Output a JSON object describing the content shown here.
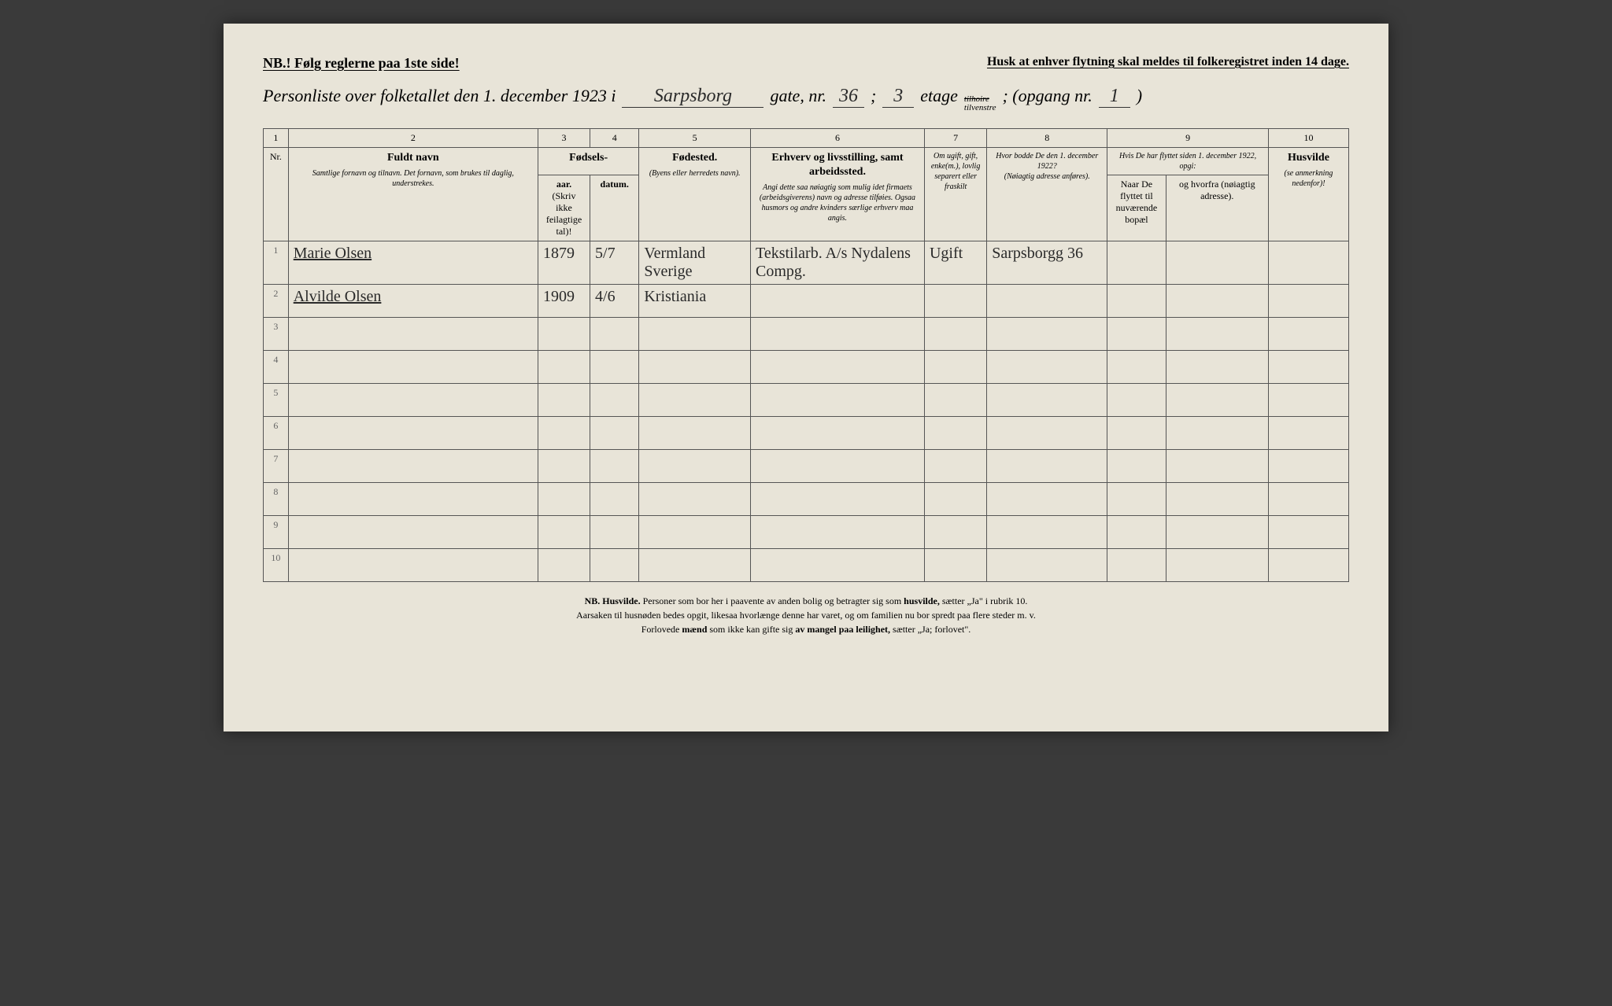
{
  "header": {
    "nb": "NB.! Følg reglerne paa 1ste side!",
    "husk": "Husk at enhver flytning skal meldes til folkeregistret inden 14 dage."
  },
  "title": {
    "prefix": "Personliste over folketallet den 1. december 1923 i",
    "gate_hw": "Sarpsborg",
    "gate_suffix": "gate, nr.",
    "nr_hw": "36",
    "semicolon": ";",
    "etage_hw": "3",
    "etage_label": "etage",
    "tilhoire": "tilhoire",
    "tilvenstre": "tilvenstre",
    "opgang_prefix": "; (opgang nr.",
    "opgang_hw": "1",
    "opgang_suffix": ")"
  },
  "cols": {
    "numbers": [
      "1",
      "2",
      "3",
      "4",
      "5",
      "6",
      "7",
      "8",
      "9",
      "10"
    ],
    "nr": "Nr.",
    "fuldt_navn": "Fuldt navn",
    "fuldt_navn_sub": "Samtlige fornavn og tilnavn. Det fornavn, som brukes til daglig, understrekes.",
    "fodsels": "Fødsels-",
    "aar": "aar.",
    "datum": "datum.",
    "fodsels_sub": "(Skriv ikke feilagtige tal)!",
    "fodested": "Fødested.",
    "fodested_sub": "(Byens eller herredets navn).",
    "erhverv": "Erhverv og livsstilling, samt arbeidssted.",
    "erhverv_sub": "Angi dette saa nøiagtig som mulig idet firmaets (arbeidsgiverens) navn og adresse tilføies. Ogsaa husmors og andre kvinders særlige erhverv maa angis.",
    "ugift": "Om ugift, gift, enke(m.), lovlig separert eller fraskilt",
    "hvor_bodde": "Hvor bodde De den 1. december 1922?",
    "hvor_bodde_sub": "(Nøiagtig adresse anføres).",
    "hvis_flyttet": "Hvis De har flyttet siden 1. december 1922, opgi:",
    "naar": "Naar De flyttet til nuværende bopæl",
    "hvorfra": "og hvorfra (nøiagtig adresse).",
    "husvilde": "Husvilde",
    "husvilde_sub": "(se anmerkning nedenfor)!"
  },
  "rows": [
    {
      "n": "1",
      "name": "Marie Olsen",
      "aar": "1879",
      "dat": "5/7",
      "sted": "Vermland Sverige",
      "erhv": "Tekstilarb. A/s Nydalens Compg.",
      "ugift": "Ugift",
      "bodde": "Sarpsborgg 36",
      "naar": "",
      "hvorfra": "",
      "husv": ""
    },
    {
      "n": "2",
      "name": "Alvilde Olsen",
      "aar": "1909",
      "dat": "4/6",
      "sted": "Kristiania",
      "erhv": "",
      "ugift": "",
      "bodde": "",
      "naar": "",
      "hvorfra": "",
      "husv": ""
    },
    {
      "n": "3",
      "name": "",
      "aar": "",
      "dat": "",
      "sted": "",
      "erhv": "",
      "ugift": "",
      "bodde": "",
      "naar": "",
      "hvorfra": "",
      "husv": ""
    },
    {
      "n": "4",
      "name": "",
      "aar": "",
      "dat": "",
      "sted": "",
      "erhv": "",
      "ugift": "",
      "bodde": "",
      "naar": "",
      "hvorfra": "",
      "husv": ""
    },
    {
      "n": "5",
      "name": "",
      "aar": "",
      "dat": "",
      "sted": "",
      "erhv": "",
      "ugift": "",
      "bodde": "",
      "naar": "",
      "hvorfra": "",
      "husv": ""
    },
    {
      "n": "6",
      "name": "",
      "aar": "",
      "dat": "",
      "sted": "",
      "erhv": "",
      "ugift": "",
      "bodde": "",
      "naar": "",
      "hvorfra": "",
      "husv": ""
    },
    {
      "n": "7",
      "name": "",
      "aar": "",
      "dat": "",
      "sted": "",
      "erhv": "",
      "ugift": "",
      "bodde": "",
      "naar": "",
      "hvorfra": "",
      "husv": ""
    },
    {
      "n": "8",
      "name": "",
      "aar": "",
      "dat": "",
      "sted": "",
      "erhv": "",
      "ugift": "",
      "bodde": "",
      "naar": "",
      "hvorfra": "",
      "husv": ""
    },
    {
      "n": "9",
      "name": "",
      "aar": "",
      "dat": "",
      "sted": "",
      "erhv": "",
      "ugift": "",
      "bodde": "",
      "naar": "",
      "hvorfra": "",
      "husv": ""
    },
    {
      "n": "10",
      "name": "",
      "aar": "",
      "dat": "",
      "sted": "",
      "erhv": "",
      "ugift": "",
      "bodde": "",
      "naar": "",
      "hvorfra": "",
      "husv": ""
    }
  ],
  "footnote": {
    "l1a": "NB. Husvilde.",
    "l1b": " Personer som bor her i paavente av anden bolig og betragter sig som ",
    "l1c": "husvilde,",
    "l1d": " sætter „Ja\" i rubrik 10.",
    "l2": "Aarsaken til husnøden bedes opgit, likesaa hvorlænge denne har varet, og om familien nu bor spredt paa flere steder m. v.",
    "l3a": "Forlovede ",
    "l3b": "mænd",
    "l3c": " som ikke kan gifte sig ",
    "l3d": "av mangel paa leilighet,",
    "l3e": " sætter „Ja; forlovet\"."
  }
}
